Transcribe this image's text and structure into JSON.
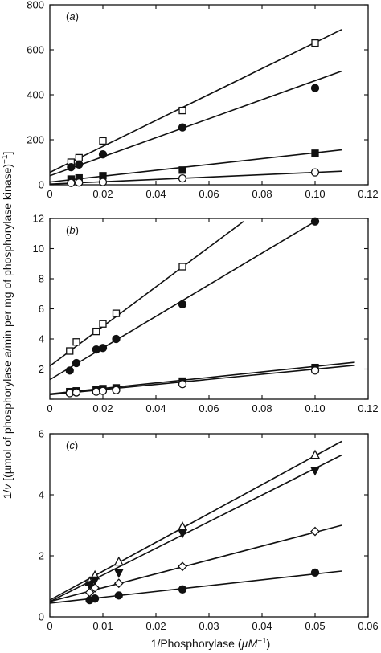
{
  "ylabel_parts": [
    "1/",
    "v",
    " [(µmol of phosphorylase ",
    "a",
    "/min per mg of phosphorylase kinase)",
    "−1",
    "]"
  ],
  "xlabel_parts": [
    "1/Phosphorylase (",
    "µ",
    "M",
    "−1",
    ")"
  ],
  "chart_data": [
    {
      "type": "scatter",
      "panel_label": "(a)",
      "xlim": [
        0,
        0.12
      ],
      "ylim": [
        0,
        800
      ],
      "xticks": [
        0,
        0.02,
        0.04,
        0.06,
        0.08,
        0.1,
        0.12
      ],
      "xtick_labels": [
        "0",
        "0.02",
        "0.04",
        "0.06",
        "0.08",
        "0.10",
        "0.12"
      ],
      "yticks": [
        0,
        200,
        400,
        600,
        800
      ],
      "ytick_labels": [
        "0",
        "200",
        "400",
        "600",
        "800"
      ],
      "series": [
        {
          "marker": "open-square",
          "x": [
            0.008,
            0.011,
            0.02,
            0.05,
            0.1
          ],
          "y": [
            100,
            120,
            195,
            330,
            630
          ],
          "fit": {
            "x": [
              0,
              0.11
            ],
            "y": [
              55,
              690
            ]
          }
        },
        {
          "marker": "filled-circle",
          "x": [
            0.008,
            0.011,
            0.02,
            0.05,
            0.1
          ],
          "y": [
            78,
            90,
            135,
            255,
            430
          ],
          "fit": {
            "x": [
              0,
              0.11
            ],
            "y": [
              40,
              505
            ]
          }
        },
        {
          "marker": "filled-square",
          "x": [
            0.008,
            0.011,
            0.02,
            0.05,
            0.1
          ],
          "y": [
            25,
            30,
            40,
            65,
            140
          ],
          "fit": {
            "x": [
              0,
              0.11
            ],
            "y": [
              12,
              155
            ]
          }
        },
        {
          "marker": "open-circle",
          "x": [
            0.008,
            0.011,
            0.02,
            0.05,
            0.1
          ],
          "y": [
            8,
            10,
            12,
            28,
            55
          ],
          "fit": {
            "x": [
              0,
              0.11
            ],
            "y": [
              3,
              60
            ]
          }
        }
      ]
    },
    {
      "type": "scatter",
      "panel_label": "(b)",
      "xlim": [
        0,
        0.12
      ],
      "ylim": [
        0,
        12
      ],
      "xticks": [
        0,
        0.02,
        0.04,
        0.06,
        0.08,
        0.1,
        0.12
      ],
      "xtick_labels": [
        "0",
        "0.02",
        "0.04",
        "0.06",
        "0.08",
        "0.10",
        "0.12"
      ],
      "yticks": [
        0,
        2,
        4,
        6,
        8,
        10,
        12
      ],
      "ytick_labels": [
        "",
        "2",
        "4",
        "6",
        "8",
        "10",
        "12"
      ],
      "series": [
        {
          "marker": "open-square",
          "x": [
            0.0075,
            0.01,
            0.0175,
            0.02,
            0.025,
            0.05
          ],
          "y": [
            3.2,
            3.8,
            4.5,
            5.0,
            5.7,
            8.8
          ],
          "fit": {
            "x": [
              0,
              0.073
            ],
            "y": [
              2.2,
              11.8
            ]
          }
        },
        {
          "marker": "filled-circle",
          "x": [
            0.0075,
            0.01,
            0.0175,
            0.02,
            0.025,
            0.05,
            0.1
          ],
          "y": [
            1.9,
            2.4,
            3.3,
            3.4,
            4.0,
            6.3,
            11.8
          ],
          "fit": {
            "x": [
              0,
              0.1
            ],
            "y": [
              1.3,
              11.8
            ]
          }
        },
        {
          "marker": "filled-square",
          "x": [
            0.0075,
            0.01,
            0.0175,
            0.02,
            0.025,
            0.05,
            0.1
          ],
          "y": [
            0.5,
            0.55,
            0.65,
            0.7,
            0.75,
            1.2,
            2.1
          ],
          "fit": {
            "x": [
              0,
              0.115
            ],
            "y": [
              0.35,
              2.45
            ]
          }
        },
        {
          "marker": "open-circle",
          "x": [
            0.0075,
            0.01,
            0.0175,
            0.02,
            0.025,
            0.05,
            0.1
          ],
          "y": [
            0.4,
            0.45,
            0.5,
            0.55,
            0.6,
            1.0,
            1.9
          ],
          "fit": {
            "x": [
              0,
              0.115
            ],
            "y": [
              0.3,
              2.25
            ]
          }
        }
      ]
    },
    {
      "type": "scatter",
      "panel_label": "(c)",
      "xlim": [
        0,
        0.06
      ],
      "ylim": [
        0,
        6
      ],
      "xticks": [
        0,
        0.01,
        0.02,
        0.03,
        0.04,
        0.05,
        0.06
      ],
      "xtick_labels": [
        "0",
        "0.01",
        "0.02",
        "0.03",
        "0.04",
        "0.05",
        "0.06"
      ],
      "yticks": [
        0,
        2,
        4,
        6
      ],
      "ytick_labels": [
        "0",
        "2",
        "4",
        "6"
      ],
      "series": [
        {
          "marker": "open-triangle-up",
          "x": [
            0.0075,
            0.0085,
            0.013,
            0.025,
            0.05
          ],
          "y": [
            1.15,
            1.35,
            1.8,
            2.95,
            5.3
          ],
          "fit": {
            "x": [
              0,
              0.055
            ],
            "y": [
              0.55,
              5.75
            ]
          }
        },
        {
          "marker": "filled-triangle-down",
          "x": [
            0.0075,
            0.0085,
            0.013,
            0.025,
            0.05
          ],
          "y": [
            1.05,
            1.2,
            1.45,
            2.75,
            4.8
          ],
          "fit": {
            "x": [
              0,
              0.055
            ],
            "y": [
              0.5,
              5.3
            ]
          }
        },
        {
          "marker": "open-diamond",
          "x": [
            0.0075,
            0.0085,
            0.013,
            0.025,
            0.05
          ],
          "y": [
            0.8,
            0.95,
            1.1,
            1.65,
            2.8
          ],
          "fit": {
            "x": [
              0,
              0.055
            ],
            "y": [
              0.5,
              3.0
            ]
          }
        },
        {
          "marker": "filled-circle",
          "x": [
            0.0075,
            0.0085,
            0.013,
            0.025,
            0.05
          ],
          "y": [
            0.55,
            0.6,
            0.7,
            0.9,
            1.45
          ],
          "fit": {
            "x": [
              0,
              0.055
            ],
            "y": [
              0.45,
              1.5
            ]
          }
        }
      ]
    }
  ]
}
